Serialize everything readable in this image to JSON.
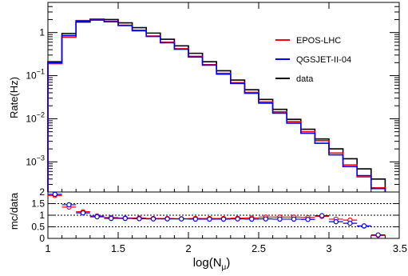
{
  "chart_data": [
    {
      "type": "line",
      "title": "",
      "xlabel": "log(N_μ)",
      "xlabel_main": "log(N",
      "xlabel_sub": "μ",
      "xlabel_end": ")",
      "ylabel": "Rate(Hz)",
      "y_scale": "log",
      "xlim": [
        1,
        3.5
      ],
      "ylim": [
        0.0002,
        5
      ],
      "grid": false,
      "legend_position": "top-right",
      "x_ticks": [
        "1",
        "1.5",
        "2",
        "2.5",
        "3",
        "3.5"
      ],
      "y_ticks": [
        {
          "value": 1,
          "base": "1",
          "exp": ""
        },
        {
          "value": 0.1,
          "base": "10",
          "exp": "−1"
        },
        {
          "value": 0.01,
          "base": "10",
          "exp": "−2"
        },
        {
          "value": 0.001,
          "base": "10",
          "exp": "−3"
        }
      ],
      "bin_edges": [
        1.0,
        1.1,
        1.2,
        1.3,
        1.4,
        1.5,
        1.6,
        1.7,
        1.8,
        1.9,
        2.0,
        2.1,
        2.2,
        2.3,
        2.4,
        2.5,
        2.6,
        2.7,
        2.8,
        2.9,
        3.0,
        3.1,
        3.2,
        3.3,
        3.4
      ],
      "series": [
        {
          "name": "data",
          "color": "#000000",
          "values": [
            0.21,
            0.95,
            1.75,
            2.05,
            2.0,
            1.68,
            1.3,
            0.97,
            0.7,
            0.49,
            0.33,
            0.21,
            0.13,
            0.079,
            0.047,
            0.028,
            0.0165,
            0.0097,
            0.0057,
            0.0034,
            0.002,
            0.00118,
            0.00069,
            0.0004
          ]
        },
        {
          "name": "EPOS-LHC",
          "color": "#ff0000",
          "values": [
            0.19,
            0.78,
            1.9,
            2.0,
            1.82,
            1.48,
            1.13,
            0.83,
            0.6,
            0.42,
            0.28,
            0.18,
            0.113,
            0.069,
            0.041,
            0.0245,
            0.0145,
            0.0086,
            0.005,
            0.0031,
            0.0016,
            0.00085,
            0.00045,
            0.00025
          ]
        },
        {
          "name": "QGSJET-II-04",
          "color": "#0000ff",
          "values": [
            0.2,
            0.85,
            1.85,
            1.95,
            1.78,
            1.45,
            1.1,
            0.81,
            0.58,
            0.41,
            0.27,
            0.175,
            0.108,
            0.066,
            0.039,
            0.023,
            0.0135,
            0.0079,
            0.0046,
            0.0027,
            0.00145,
            0.00078,
            0.00048,
            0.00024
          ]
        }
      ]
    },
    {
      "type": "scatter",
      "title": "",
      "xlabel": "",
      "ylabel": "mc/data",
      "xlim": [
        1,
        3.5
      ],
      "ylim": [
        0,
        2
      ],
      "grid": false,
      "reference_lines": [
        0.5,
        1,
        1.5
      ],
      "x_ticks": [
        "1",
        "1.5",
        "2",
        "2.5",
        "3",
        "3.5"
      ],
      "y_ticks": [
        "0",
        "0.5",
        "1",
        "1.5",
        "2"
      ],
      "x": [
        1.05,
        1.15,
        1.25,
        1.35,
        1.45,
        1.55,
        1.65,
        1.75,
        1.85,
        1.95,
        2.05,
        2.15,
        2.25,
        2.35,
        2.45,
        2.55,
        2.65,
        2.75,
        2.85,
        2.95,
        3.05,
        3.15,
        3.25,
        3.35
      ],
      "series": [
        {
          "name": "EPOS-LHC",
          "color": "#ff0000",
          "values": [
            1.85,
            1.35,
            1.15,
            0.97,
            0.9,
            0.88,
            0.88,
            0.86,
            0.86,
            0.85,
            0.86,
            0.86,
            0.86,
            0.87,
            0.88,
            0.92,
            0.92,
            0.92,
            0.9,
            0.95,
            0.83,
            0.79,
            0.53,
            0.13
          ]
        },
        {
          "name": "QGSJET-II-04",
          "color": "#0000ff",
          "values": [
            1.9,
            1.45,
            1.1,
            0.93,
            0.86,
            0.86,
            0.85,
            0.84,
            0.84,
            0.84,
            0.83,
            0.83,
            0.83,
            0.84,
            0.83,
            0.84,
            0.83,
            0.83,
            0.82,
            0.98,
            0.72,
            0.65,
            0.54,
            0.15
          ]
        }
      ]
    }
  ]
}
